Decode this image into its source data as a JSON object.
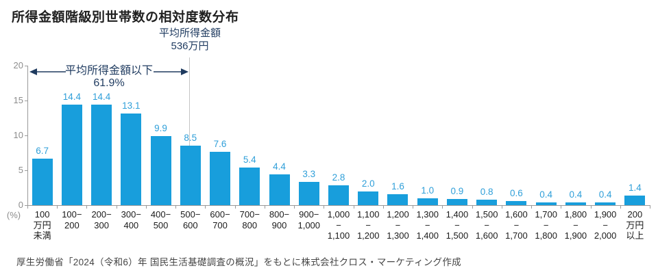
{
  "title": "所得金額階級別世帯数の相対度数分布",
  "footer": "厚生労働省「2024（令和6）年 国民生活基礎調査の概況」をもとに株式会社クロス・マーケティング作成",
  "chart_data": {
    "type": "bar",
    "title": "所得金額階級別世帯数の相対度数分布",
    "ylabel": "(%)",
    "ylim": [
      0,
      20
    ],
    "y_ticks": [
      0,
      5,
      10,
      15,
      20
    ],
    "grid": false,
    "legend": false,
    "bar_color": "#189EDC",
    "value_label_color": "#2F9FD9",
    "annotation_color": "#1E3A5F",
    "categories": [
      "100万円未満",
      "100−200",
      "200−300",
      "300−400",
      "400−500",
      "500−600",
      "600−700",
      "700−800",
      "800−900",
      "900−1,000",
      "1,000−1,100",
      "1,100−1,200",
      "1,200−1,300",
      "1,300−1,400",
      "1,400−1,500",
      "1,500−1,600",
      "1,600−1,700",
      "1,700−1,800",
      "1,800−1,900",
      "1,900−2,000",
      "200万円以上"
    ],
    "category_display_lines": [
      [
        "100",
        "万円",
        "未満"
      ],
      [
        "100−",
        "200"
      ],
      [
        "200−",
        "300"
      ],
      [
        "300−",
        "400"
      ],
      [
        "400−",
        "500"
      ],
      [
        "500−",
        "600"
      ],
      [
        "600−",
        "700"
      ],
      [
        "700−",
        "800"
      ],
      [
        "800−",
        "900"
      ],
      [
        "900−",
        "1,000"
      ],
      [
        "1,000",
        "−",
        "1,100"
      ],
      [
        "1,100",
        "−",
        "1,200"
      ],
      [
        "1,200",
        "−",
        "1,300"
      ],
      [
        "1,300",
        "−",
        "1,400"
      ],
      [
        "1,400",
        "−",
        "1,500"
      ],
      [
        "1,500",
        "−",
        "1,600"
      ],
      [
        "1,600",
        "−",
        "1,700"
      ],
      [
        "1,700",
        "−",
        "1,800"
      ],
      [
        "1,800",
        "−",
        "1,900"
      ],
      [
        "1,900",
        "−",
        "2,000"
      ],
      [
        "200",
        "万円",
        "以上"
      ]
    ],
    "values": [
      6.7,
      14.4,
      14.4,
      13.1,
      9.9,
      8.5,
      7.6,
      5.4,
      4.4,
      3.3,
      2.8,
      2.0,
      1.6,
      1.0,
      0.9,
      0.8,
      0.6,
      0.4,
      0.4,
      0.4,
      1.4
    ],
    "mean_annotation": {
      "label": "平均所得金額",
      "value_label": "536万円",
      "share_below_label": "平均所得金額以下",
      "share_below_value": "61.9%"
    }
  }
}
